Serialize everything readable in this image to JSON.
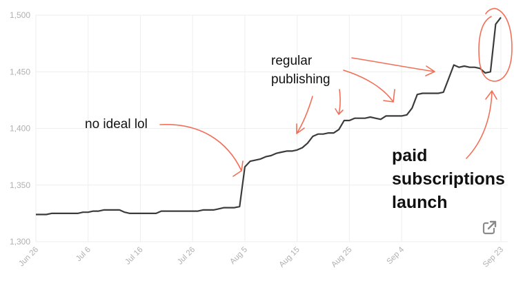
{
  "chart_data": {
    "type": "line",
    "title": "",
    "xlabel": "",
    "ylabel": "",
    "ylim": [
      1300,
      1500
    ],
    "y_ticks": [
      "1,300",
      "1,350",
      "1,400",
      "1,450",
      "1,500"
    ],
    "y_tick_values": [
      1300,
      1350,
      1400,
      1450,
      1500
    ],
    "x_ticks": [
      "Jun 26",
      "Jul 6",
      "Jul 16",
      "Jul 26",
      "Aug 5",
      "Aug 15",
      "Aug 25",
      "Sep 4",
      "Sep 23"
    ],
    "x_tick_days": [
      0,
      10,
      20,
      30,
      40,
      50,
      60,
      70,
      89
    ],
    "grid": true,
    "series": [
      {
        "name": "",
        "x": [
          0,
          1,
          2,
          3,
          4,
          5,
          6,
          7,
          8,
          9,
          10,
          11,
          12,
          13,
          14,
          15,
          16,
          17,
          18,
          19,
          20,
          21,
          22,
          23,
          24,
          25,
          26,
          27,
          28,
          29,
          30,
          31,
          32,
          33,
          34,
          35,
          36,
          37,
          38,
          39,
          40,
          41,
          42,
          43,
          44,
          45,
          46,
          47,
          48,
          49,
          50,
          51,
          52,
          53,
          54,
          55,
          56,
          57,
          58,
          59,
          60,
          61,
          62,
          63,
          64,
          65,
          66,
          67,
          68,
          69,
          70,
          71,
          72,
          73,
          74,
          75,
          76,
          77,
          78,
          79,
          80,
          81,
          82,
          83,
          84,
          85,
          86,
          87,
          88,
          89
        ],
        "y": [
          1324,
          1324,
          1324,
          1325,
          1325,
          1325,
          1325,
          1325,
          1325,
          1326,
          1326,
          1327,
          1327,
          1328,
          1328,
          1328,
          1328,
          1326,
          1325,
          1325,
          1325,
          1325,
          1325,
          1325,
          1327,
          1327,
          1327,
          1327,
          1327,
          1327,
          1327,
          1327,
          1328,
          1328,
          1328,
          1329,
          1330,
          1330,
          1330,
          1331,
          1366,
          1371,
          1372,
          1373,
          1375,
          1376,
          1378,
          1379,
          1380,
          1380,
          1381,
          1383,
          1387,
          1393,
          1395,
          1395,
          1396,
          1396,
          1399,
          1407,
          1407,
          1409,
          1409,
          1409,
          1410,
          1409,
          1408,
          1411,
          1411,
          1411,
          1411,
          1412,
          1418,
          1430,
          1431,
          1431,
          1431,
          1431,
          1432,
          1444,
          1456,
          1454,
          1455,
          1454,
          1454,
          1453,
          1449,
          1450,
          1492,
          1498
        ]
      }
    ],
    "annotations": [
      "no ideal lol",
      "regular",
      "publishing",
      "paid",
      "subscriptions",
      "launch"
    ]
  },
  "colors": {
    "line": "#3b3b3b",
    "annotation": "#f26f57",
    "grid": "#eeeeee",
    "tick": "#b0b0b0",
    "icon": "#8a8a8a"
  },
  "icons": {
    "external_link": "external-link-icon"
  }
}
